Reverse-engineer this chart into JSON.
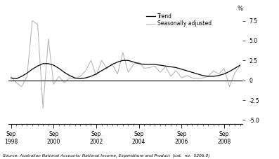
{
  "source_text": "Source: Australian National Accounts: National Income, Expenditure and Product  (cat.  no.  5206.0)",
  "ylim": [
    -5.5,
    8.5
  ],
  "yticks": [
    -5.0,
    -2.5,
    0.0,
    2.5,
    5.0,
    7.5
  ],
  "ytick_labels": [
    "-5.0",
    "-2.5",
    "0",
    "2.5",
    "5.0",
    "7.5"
  ],
  "trend_color": "#000000",
  "seasonal_color": "#b0b0b0",
  "zero_line_color": "#000000",
  "legend_trend": "Trend",
  "legend_seasonal": "Seasonally adjusted",
  "trend_data": [
    0.3,
    0.2,
    0.5,
    0.9,
    1.4,
    1.8,
    2.1,
    2.1,
    1.9,
    1.5,
    1.0,
    0.6,
    0.3,
    0.2,
    0.3,
    0.5,
    0.8,
    1.2,
    1.6,
    2.0,
    2.3,
    2.5,
    2.5,
    2.3,
    2.1,
    2.0,
    2.0,
    2.0,
    1.9,
    1.8,
    1.7,
    1.6,
    1.4,
    1.2,
    1.0,
    0.8,
    0.6,
    0.5,
    0.5,
    0.6,
    0.8,
    1.1,
    1.5,
    1.9
  ],
  "seasonal_data": [
    0.4,
    -0.3,
    -0.8,
    0.5,
    7.5,
    7.0,
    -3.5,
    5.2,
    -0.5,
    0.5,
    -0.3,
    0.3,
    0.2,
    0.5,
    1.2,
    2.5,
    0.6,
    2.5,
    1.5,
    2.0,
    0.8,
    3.5,
    1.0,
    2.0,
    2.3,
    1.5,
    1.6,
    1.8,
    1.0,
    1.7,
    0.5,
    1.2,
    0.3,
    0.6,
    0.3,
    0.2,
    0.3,
    0.5,
    1.2,
    0.8,
    1.5,
    -0.8,
    0.9,
    1.8
  ],
  "xlim": [
    -0.5,
    43.5
  ],
  "xtick_positions": [
    0,
    8,
    16,
    24,
    32,
    40
  ],
  "xtick_labels": [
    "Sep\n1998",
    "Sep\n2000",
    "Sep\n2002",
    "Sep\n2004",
    "Sep\n2006",
    "Sep\n2008"
  ]
}
